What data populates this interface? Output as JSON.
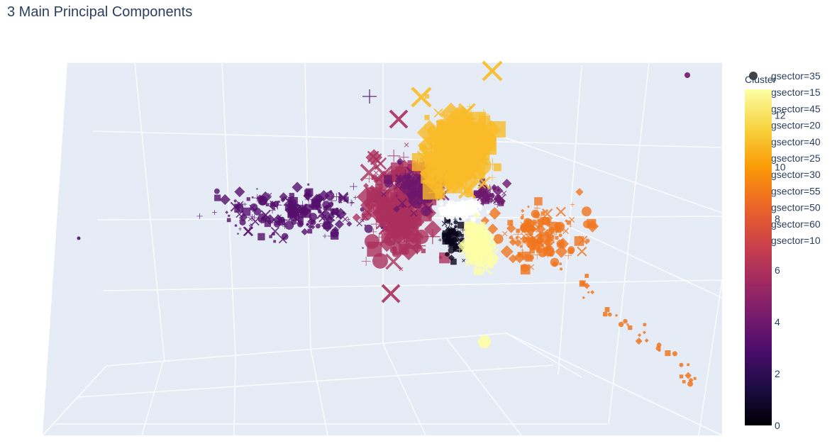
{
  "chart_data": {
    "type": "scatter3d",
    "title": "3 Main Principal Components",
    "colorbar": {
      "title": "Cluster",
      "range": [
        0,
        13
      ],
      "ticks": [
        0,
        2,
        4,
        6,
        8,
        10,
        12
      ],
      "colorscale": [
        "#000004",
        "#1b0c41",
        "#4a0c6b",
        "#781c6d",
        "#a52c60",
        "#cf4446",
        "#ed6925",
        "#fb9b06",
        "#f7d13d",
        "#fcffa4"
      ]
    },
    "legend": {
      "placement": "right",
      "items": [
        "gsector=35",
        "gsector=15",
        "gsector=45",
        "gsector=20",
        "gsector=40",
        "gsector=25",
        "gsector=30",
        "gsector=55",
        "gsector=50",
        "gsector=60",
        "gsector=10"
      ]
    },
    "grid": true,
    "clusters": [
      {
        "name": "0",
        "color_value": 0.5
      },
      {
        "name": "3",
        "color_value": 3.2
      },
      {
        "name": "4",
        "color_value": 4.0
      },
      {
        "name": "6",
        "color_value": 6.0
      },
      {
        "name": "9",
        "color_value": 9.0
      },
      {
        "name": "11",
        "color_value": 11.0
      },
      {
        "name": "13",
        "color_value": 13.0
      }
    ]
  }
}
